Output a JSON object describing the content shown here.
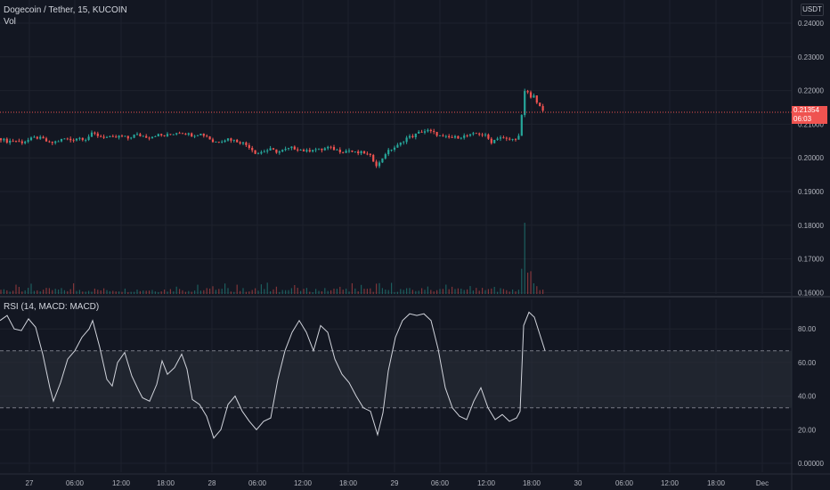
{
  "header": {
    "symbol_line": "Dogecoin / Tether, 15, KUCOIN",
    "volume_label": "Vol",
    "currency": "USDT"
  },
  "indicator": {
    "label": "RSI (14, MACD: MACD)"
  },
  "last_price": {
    "value": "0.21354",
    "countdown": "06:03",
    "color": "#ef5350"
  },
  "colors": {
    "background": "#131722",
    "up": "#26a69a",
    "down": "#ef5350",
    "grid": "#1e222d",
    "rsi_line": "#d1d4dc",
    "band_fill": "#2a2e39"
  },
  "chart_data": [
    {
      "type": "candlestick",
      "title": "Dogecoin / Tether, 15, KUCOIN",
      "x_tick_labels": [
        "27",
        "06:00",
        "12:00",
        "18:00",
        "28",
        "06:00",
        "12:00",
        "18:00",
        "29",
        "06:00",
        "12:00",
        "18:00",
        "30",
        "06:00",
        "12:00",
        "18:00",
        "Dec"
      ],
      "y_ticks": [
        "0.24000",
        "0.23000",
        "0.22000",
        "0.21000",
        "0.20000",
        "0.19000",
        "0.18000",
        "0.17000",
        "0.16000"
      ],
      "ylim": [
        0.16,
        0.24
      ],
      "grid": true,
      "close_series": [
        [
          0,
          0.2058
        ],
        [
          8,
          0.2049
        ],
        [
          16,
          0.2052
        ],
        [
          24,
          0.2046
        ],
        [
          32,
          0.2053
        ],
        [
          40,
          0.2061
        ],
        [
          48,
          0.2056
        ],
        [
          56,
          0.2043
        ],
        [
          64,
          0.2049
        ],
        [
          72,
          0.2057
        ],
        [
          80,
          0.2053
        ],
        [
          88,
          0.206
        ],
        [
          96,
          0.2056
        ],
        [
          104,
          0.2073
        ],
        [
          112,
          0.2064
        ],
        [
          120,
          0.2061
        ],
        [
          128,
          0.2059
        ],
        [
          136,
          0.2065
        ],
        [
          144,
          0.2058
        ],
        [
          152,
          0.2069
        ],
        [
          160,
          0.2065
        ],
        [
          168,
          0.2061
        ],
        [
          176,
          0.2069
        ],
        [
          184,
          0.2065
        ],
        [
          192,
          0.207
        ],
        [
          200,
          0.2077
        ],
        [
          208,
          0.2073
        ],
        [
          216,
          0.2067
        ],
        [
          224,
          0.2072
        ],
        [
          232,
          0.2065
        ],
        [
          240,
          0.2046
        ],
        [
          248,
          0.2051
        ],
        [
          256,
          0.2057
        ],
        [
          264,
          0.2051
        ],
        [
          272,
          0.2045
        ],
        [
          280,
          0.2033
        ],
        [
          288,
          0.2012
        ],
        [
          296,
          0.202
        ],
        [
          304,
          0.2025
        ],
        [
          312,
          0.2017
        ],
        [
          320,
          0.2024
        ],
        [
          328,
          0.203
        ],
        [
          336,
          0.2025
        ],
        [
          344,
          0.2019
        ],
        [
          352,
          0.2027
        ],
        [
          360,
          0.2023
        ],
        [
          368,
          0.2031
        ],
        [
          376,
          0.2025
        ],
        [
          384,
          0.2019
        ],
        [
          392,
          0.2022
        ],
        [
          400,
          0.2014
        ],
        [
          408,
          0.2016
        ],
        [
          416,
          0.2004
        ],
        [
          424,
          0.1975
        ],
        [
          432,
          0.2012
        ],
        [
          440,
          0.2027
        ],
        [
          448,
          0.2038
        ],
        [
          456,
          0.2059
        ],
        [
          464,
          0.2065
        ],
        [
          472,
          0.2077
        ],
        [
          480,
          0.2081
        ],
        [
          488,
          0.2073
        ],
        [
          496,
          0.2062
        ],
        [
          504,
          0.206
        ],
        [
          512,
          0.2061
        ],
        [
          520,
          0.2064
        ],
        [
          528,
          0.2067
        ],
        [
          536,
          0.2073
        ],
        [
          544,
          0.2068
        ],
        [
          552,
          0.2047
        ],
        [
          560,
          0.2063
        ],
        [
          568,
          0.2055
        ],
        [
          576,
          0.2054
        ],
        [
          584,
          0.2066
        ],
        [
          588,
          0.2195
        ],
        [
          592,
          0.2198
        ],
        [
          596,
          0.2178
        ],
        [
          600,
          0.219
        ],
        [
          604,
          0.2154
        ],
        [
          608,
          0.2146
        ],
        [
          612,
          0.2135
        ]
      ],
      "volume_max": 0.18,
      "last_value": 0.21354
    },
    {
      "type": "line",
      "title": "RSI (14, MACD: MACD)",
      "y_ticks": [
        "80.00",
        "60.00",
        "40.00",
        "20.00",
        "0.00000"
      ],
      "ylim": [
        0,
        100
      ],
      "bands": [
        33,
        67
      ],
      "series": [
        {
          "values": [
            [
              0,
              85
            ],
            [
              8,
              88
            ],
            [
              16,
              80
            ],
            [
              24,
              79
            ],
            [
              32,
              86
            ],
            [
              40,
              81
            ],
            [
              48,
              65
            ],
            [
              56,
              45
            ],
            [
              60,
              37
            ],
            [
              68,
              48
            ],
            [
              76,
              62
            ],
            [
              84,
              67
            ],
            [
              92,
              75
            ],
            [
              100,
              80
            ],
            [
              104,
              85
            ],
            [
              112,
              69
            ],
            [
              120,
              50
            ],
            [
              126,
              46
            ],
            [
              132,
              60
            ],
            [
              140,
              66
            ],
            [
              148,
              52
            ],
            [
              156,
              43
            ],
            [
              160,
              39
            ],
            [
              168,
              37
            ],
            [
              176,
              47
            ],
            [
              182,
              61
            ],
            [
              188,
              53
            ],
            [
              196,
              57
            ],
            [
              204,
              65
            ],
            [
              210,
              56
            ],
            [
              216,
              38
            ],
            [
              224,
              35
            ],
            [
              232,
              28
            ],
            [
              240,
              15
            ],
            [
              248,
              20
            ],
            [
              256,
              35
            ],
            [
              264,
              40
            ],
            [
              272,
              31
            ],
            [
              280,
              25
            ],
            [
              288,
              20
            ],
            [
              296,
              25
            ],
            [
              304,
              27
            ],
            [
              312,
              50
            ],
            [
              320,
              67
            ],
            [
              328,
              78
            ],
            [
              336,
              85
            ],
            [
              344,
              78
            ],
            [
              352,
              67
            ],
            [
              360,
              82
            ],
            [
              368,
              78
            ],
            [
              376,
              62
            ],
            [
              384,
              53
            ],
            [
              392,
              48
            ],
            [
              400,
              40
            ],
            [
              408,
              33
            ],
            [
              416,
              31
            ],
            [
              424,
              17
            ],
            [
              430,
              30
            ],
            [
              436,
              55
            ],
            [
              444,
              75
            ],
            [
              452,
              85
            ],
            [
              460,
              89
            ],
            [
              468,
              88
            ],
            [
              476,
              89
            ],
            [
              484,
              85
            ],
            [
              492,
              68
            ],
            [
              500,
              45
            ],
            [
              508,
              33
            ],
            [
              516,
              28
            ],
            [
              524,
              26
            ],
            [
              532,
              37
            ],
            [
              540,
              45
            ],
            [
              548,
              33
            ],
            [
              556,
              26
            ],
            [
              564,
              29
            ],
            [
              572,
              25
            ],
            [
              580,
              27
            ],
            [
              584,
              31
            ],
            [
              588,
              82
            ],
            [
              594,
              90
            ],
            [
              600,
              87
            ],
            [
              606,
              77
            ],
            [
              612,
              67
            ]
          ]
        }
      ]
    }
  ]
}
